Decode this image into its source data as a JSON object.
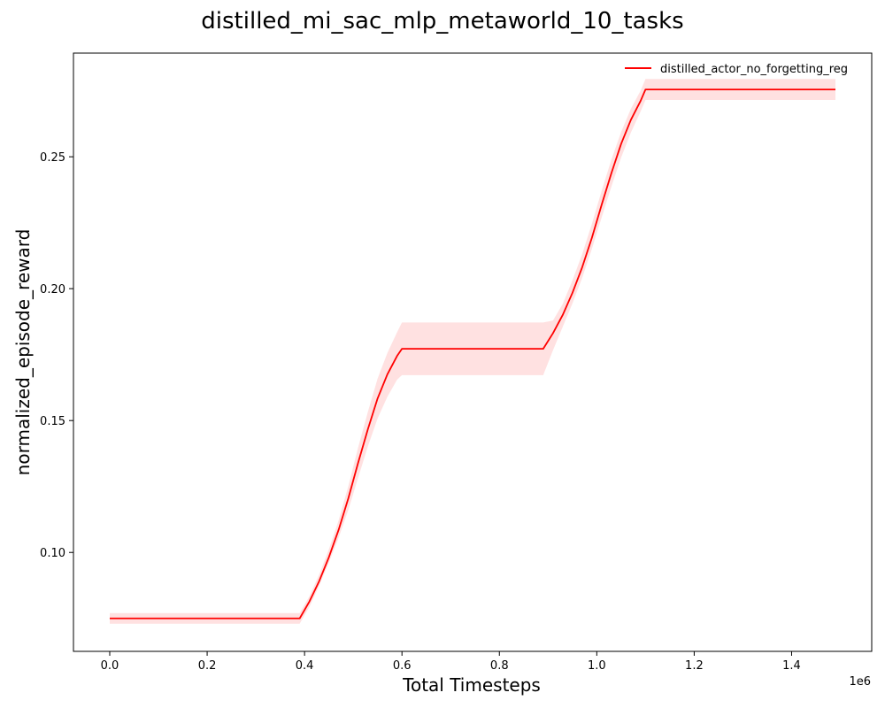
{
  "chart_data": {
    "type": "line",
    "title": "distilled_mi_sac_mlp_metaworld_10_tasks",
    "xlabel": "Total Timesteps",
    "ylabel": "normalized_episode_reward",
    "x_offset_label": "1e6",
    "xlim": [
      -0.0745,
      1.5645
    ],
    "ylim": [
      0.0625,
      0.2893
    ],
    "xticks": [
      0.0,
      0.2,
      0.4,
      0.6,
      0.8,
      1.0,
      1.2,
      1.4
    ],
    "xtick_labels": [
      "0.0",
      "0.2",
      "0.4",
      "0.6",
      "0.8",
      "1.0",
      "1.2",
      "1.4"
    ],
    "yticks": [
      0.1,
      0.15,
      0.2,
      0.25
    ],
    "ytick_labels": [
      "0.10",
      "0.15",
      "0.20",
      "0.25"
    ],
    "grid": false,
    "legend_position": "top-right",
    "series": [
      {
        "name": "distilled_actor_no_forgetting_reg",
        "color": "#ff0000",
        "band_color": "#ffe1e1",
        "x": [
          0.0,
          0.1,
          0.2,
          0.3,
          0.39,
          0.41,
          0.43,
          0.45,
          0.47,
          0.49,
          0.51,
          0.53,
          0.55,
          0.57,
          0.59,
          0.6,
          0.7,
          0.8,
          0.89,
          0.91,
          0.93,
          0.95,
          0.97,
          0.99,
          1.01,
          1.03,
          1.05,
          1.07,
          1.09,
          1.1,
          1.2,
          1.3,
          1.4,
          1.49
        ],
        "values": [
          0.075,
          0.075,
          0.075,
          0.075,
          0.075,
          0.0814,
          0.0891,
          0.0982,
          0.1086,
          0.1206,
          0.134,
          0.1467,
          0.1584,
          0.1675,
          0.1745,
          0.1772,
          0.1772,
          0.1772,
          0.1772,
          0.1831,
          0.19,
          0.1984,
          0.2081,
          0.2193,
          0.2318,
          0.2438,
          0.2549,
          0.264,
          0.2712,
          0.2755,
          0.2755,
          0.2755,
          0.2755,
          0.2755
        ],
        "lower": [
          0.073,
          0.073,
          0.073,
          0.073,
          0.073,
          0.0794,
          0.0874,
          0.0962,
          0.1056,
          0.1162,
          0.1283,
          0.1402,
          0.1508,
          0.159,
          0.1655,
          0.1672,
          0.1672,
          0.1672,
          0.1672,
          0.1766,
          0.1855,
          0.1944,
          0.2041,
          0.2151,
          0.227,
          0.2387,
          0.2497,
          0.2592,
          0.2672,
          0.2715,
          0.2715,
          0.2715,
          0.2715,
          0.2715
        ],
        "upper": [
          0.077,
          0.077,
          0.077,
          0.077,
          0.077,
          0.0834,
          0.0916,
          0.1012,
          0.1122,
          0.1252,
          0.1398,
          0.1533,
          0.1659,
          0.1756,
          0.1835,
          0.1872,
          0.1872,
          0.1872,
          0.1872,
          0.1879,
          0.1942,
          0.2031,
          0.2131,
          0.2246,
          0.2371,
          0.2489,
          0.2594,
          0.2682,
          0.2751,
          0.2795,
          0.2795,
          0.2795,
          0.2795,
          0.2795
        ]
      }
    ]
  }
}
